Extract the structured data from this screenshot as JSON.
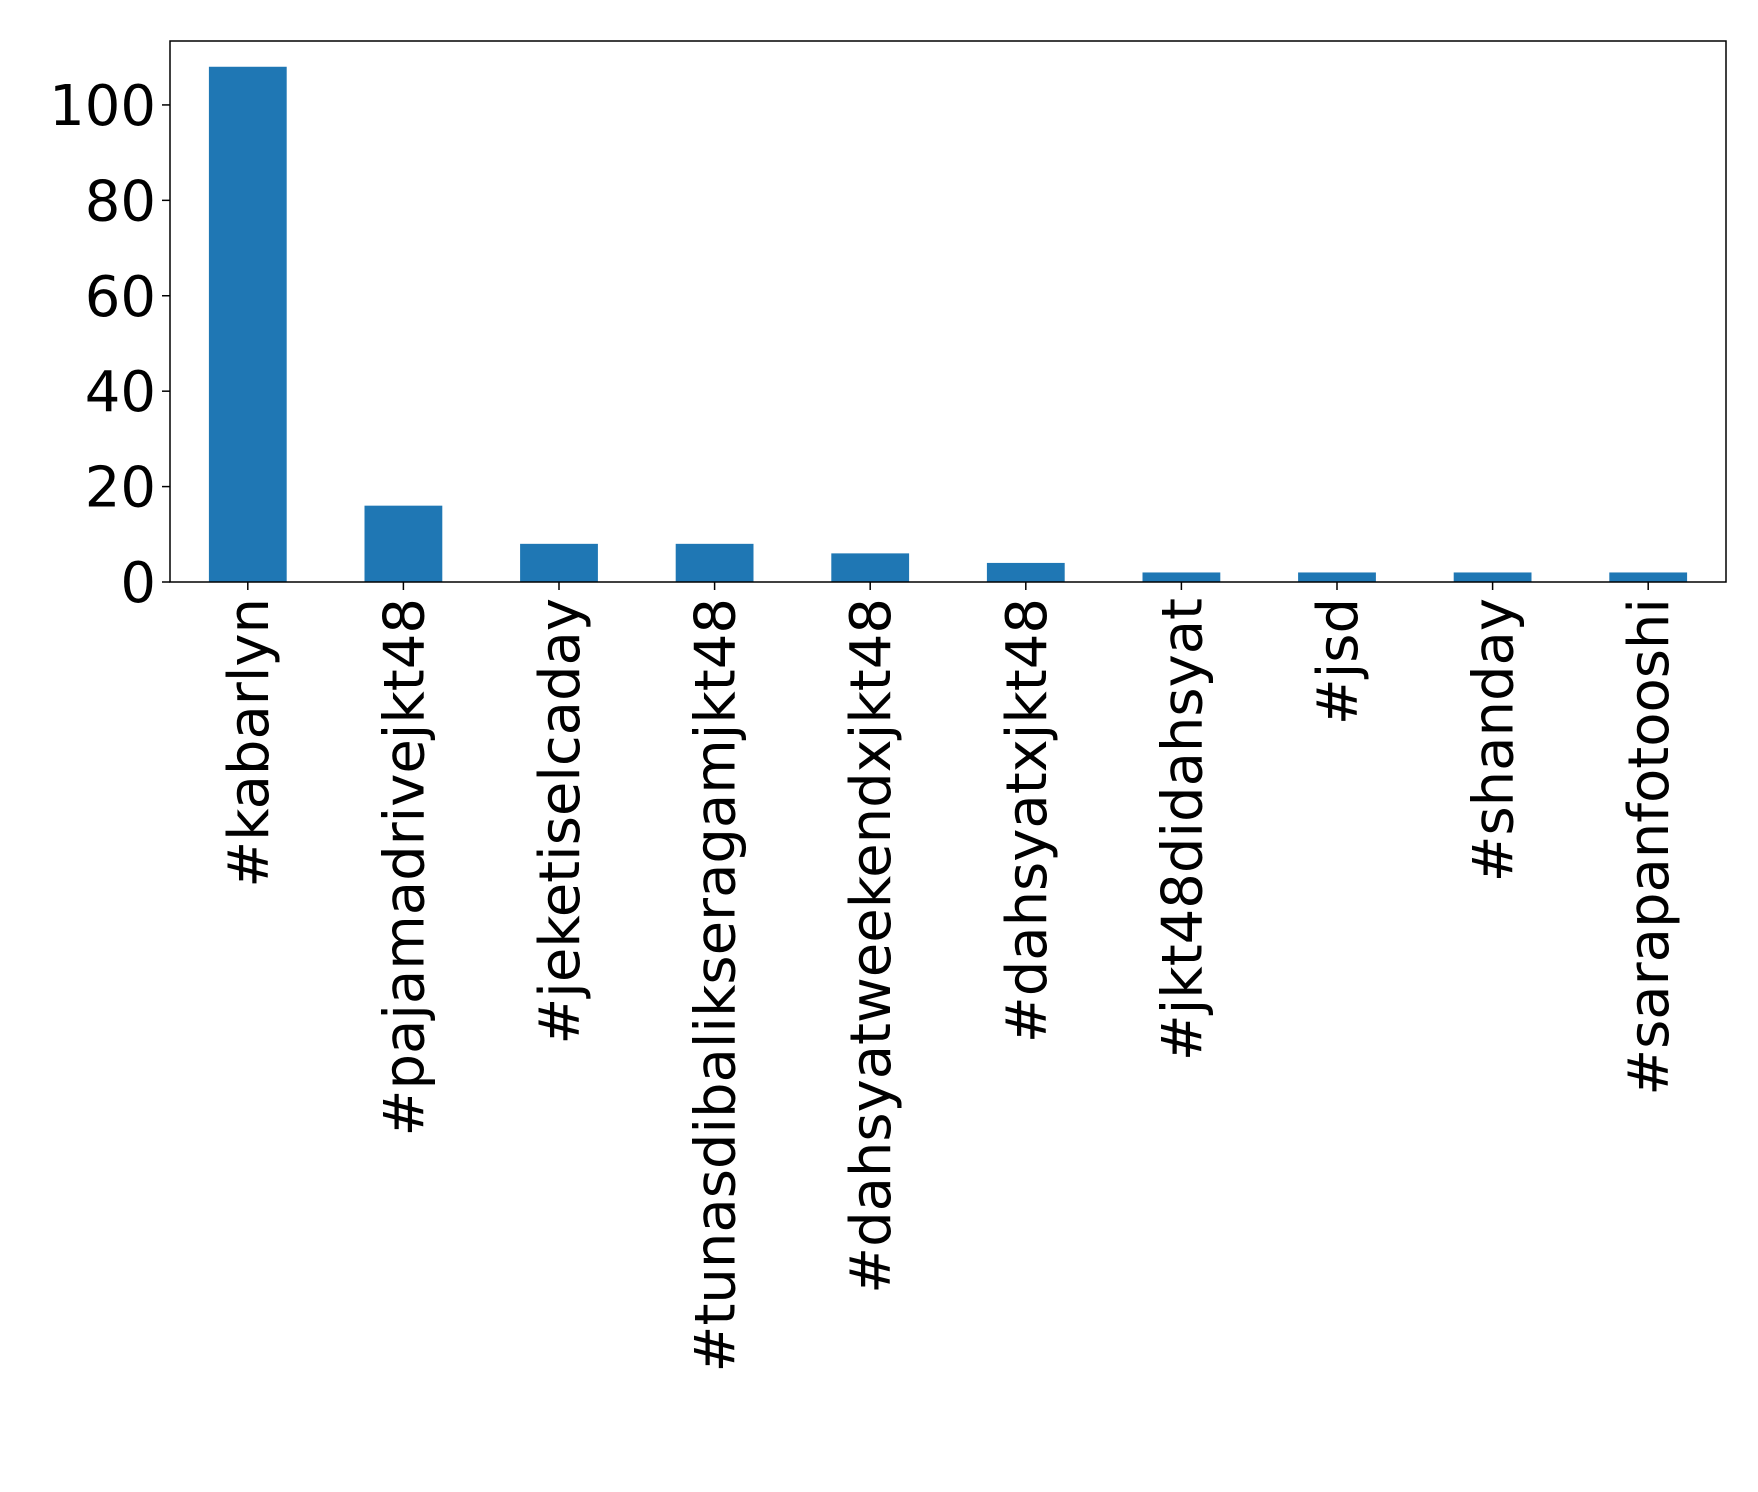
{
  "chart_data": {
    "type": "bar",
    "title": "",
    "xlabel": "",
    "ylabel": "",
    "categories": [
      "#kabarlyn",
      "#pajamadrivejkt48",
      "#jeketiselcaday",
      "#tunasdibalikseragamjkt48",
      "#dahsyatweekendxjkt48",
      "#dahsyatxjkt48",
      "#jkt48didahsyat",
      "#jsd",
      "#shanday",
      "#sarapanfotooshi"
    ],
    "values": [
      108,
      16,
      8,
      8,
      6,
      4,
      2,
      2,
      2,
      2
    ],
    "ylim": [
      0,
      113.4
    ],
    "yticks": [
      "0",
      "20",
      "40",
      "60",
      "80",
      "100"
    ],
    "bar_color": "#1f77b4",
    "grid": false,
    "legend": "none"
  }
}
